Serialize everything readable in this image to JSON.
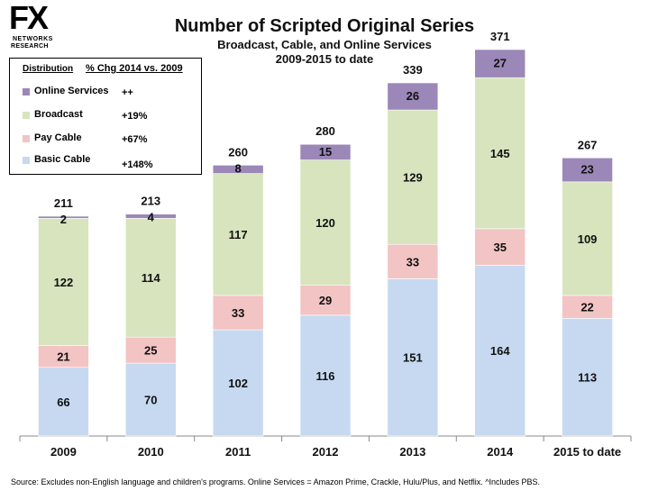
{
  "logo": {
    "mark": "FX",
    "line1": "NETWORKS",
    "line2": "RESEARCH"
  },
  "header": {
    "title": "Number of Scripted Original Series",
    "subtitle1": "Broadcast, Cable, and Online Services",
    "subtitle2": "2009-2015 to date"
  },
  "legend": {
    "header_distribution": "Distribution",
    "header_change": "% Chg 2014 vs. 2009",
    "items": [
      {
        "name": "Online Services",
        "change": "++",
        "color": "#9b87b8"
      },
      {
        "name": "Broadcast",
        "change": "+19%",
        "color": "#d7e4bd"
      },
      {
        "name": "Pay Cable",
        "change": "+67%",
        "color": "#f2c4c4"
      },
      {
        "name": "Basic Cable",
        "change": "+148%",
        "color": "#c6d9f1"
      }
    ]
  },
  "source": "Source:  Excludes non-English language and children's programs.  Online Services = Amazon Prime, Crackle, Hulu/Plus, and Netflix. ^Includes PBS.",
  "chart_data": {
    "type": "bar",
    "stacked": true,
    "title": "Number of Scripted Original Series",
    "subtitle": "Broadcast, Cable, and Online Services 2009-2015 to date",
    "xlabel": "",
    "ylabel": "",
    "ylim": [
      0,
      380
    ],
    "grid": false,
    "legend_position": "top-left",
    "categories": [
      "2009",
      "2010",
      "2011",
      "2012",
      "2013",
      "2014",
      "2015 to date"
    ],
    "totals": [
      "211",
      "213",
      "260",
      "280",
      "339",
      "371",
      "267"
    ],
    "series": [
      {
        "name": "Basic Cable",
        "color": "#c6d9f1",
        "values": [
          66,
          70,
          102,
          116,
          151,
          164,
          113
        ]
      },
      {
        "name": "Pay Cable",
        "color": "#f2c4c4",
        "values": [
          21,
          25,
          33,
          29,
          33,
          35,
          22
        ]
      },
      {
        "name": "Broadcast",
        "color": "#d7e4bd",
        "values": [
          122,
          114,
          117,
          120,
          129,
          145,
          109
        ]
      },
      {
        "name": "Online Services",
        "color": "#9b87b8",
        "values": [
          2,
          4,
          8,
          15,
          26,
          27,
          23
        ]
      }
    ]
  }
}
